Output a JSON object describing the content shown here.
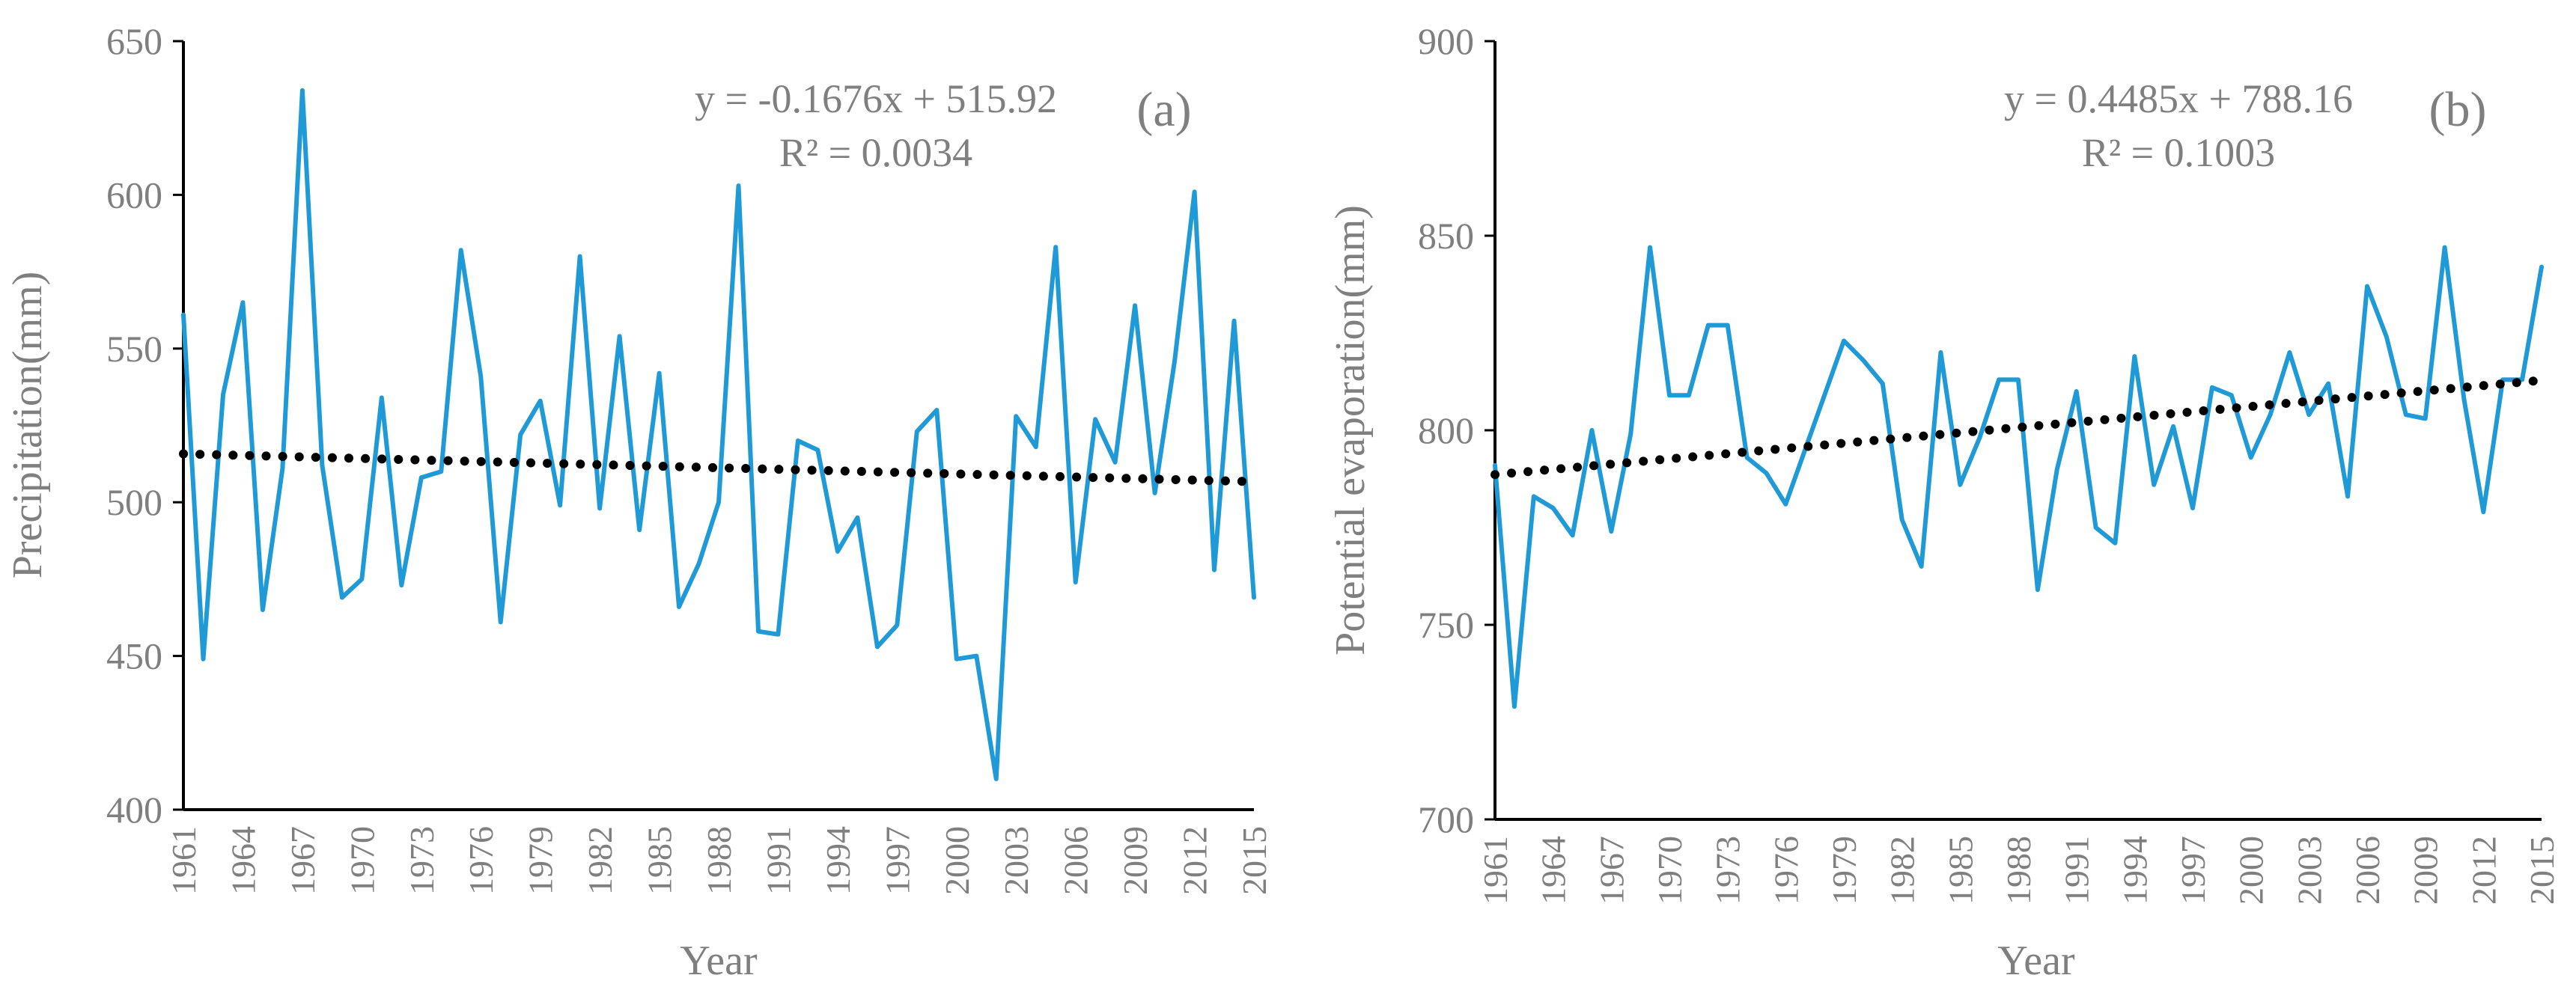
{
  "chart_data": [
    {
      "type": "line",
      "panel_label": "(a)",
      "title": "",
      "xlabel": "Year",
      "ylabel": "Precipitation(mm)",
      "ylim": [
        400,
        650
      ],
      "yticks": [
        "400",
        "450",
        "500",
        "550",
        "600",
        "650"
      ],
      "xlim": [
        1961,
        2015
      ],
      "xticks": [
        "1961",
        "1964",
        "1967",
        "1970",
        "1973",
        "1976",
        "1979",
        "1982",
        "1985",
        "1988",
        "1991",
        "1994",
        "1997",
        "2000",
        "2003",
        "2006",
        "2009",
        "2012",
        "2015"
      ],
      "grid": false,
      "equation": "y = -0.1676x + 515.92",
      "r_squared": "R² = 0.0034",
      "trendline": {
        "slope": -0.1676,
        "intercept": 515.92,
        "style": "dotted"
      },
      "series": [
        {
          "name": "Precipitation",
          "color": "#1f9ad6",
          "x": [
            1961,
            1962,
            1963,
            1964,
            1965,
            1966,
            1967,
            1968,
            1969,
            1970,
            1971,
            1972,
            1973,
            1974,
            1975,
            1976,
            1977,
            1978,
            1979,
            1980,
            1981,
            1982,
            1983,
            1984,
            1985,
            1986,
            1987,
            1988,
            1989,
            1990,
            1991,
            1992,
            1993,
            1994,
            1995,
            1996,
            1997,
            1998,
            1999,
            2000,
            2001,
            2002,
            2003,
            2004,
            2005,
            2006,
            2007,
            2008,
            2009,
            2010,
            2011,
            2012,
            2013,
            2014,
            2015
          ],
          "values": [
            561,
            449,
            535,
            565,
            465,
            511,
            634,
            512,
            469,
            475,
            534,
            473,
            508,
            510,
            582,
            541,
            461,
            522,
            533,
            499,
            580,
            498,
            554,
            491,
            542,
            466,
            480,
            500,
            603,
            458,
            457,
            520,
            517,
            484,
            495,
            453,
            460,
            523,
            530,
            449,
            450,
            410,
            528,
            518,
            583,
            474,
            527,
            513,
            564,
            503,
            546,
            601,
            478,
            559,
            469
          ]
        }
      ]
    },
    {
      "type": "line",
      "panel_label": "(b)",
      "title": "",
      "xlabel": "Year",
      "ylabel": "Potential evaporation(mm)",
      "ylim": [
        700,
        900
      ],
      "yticks": [
        "700",
        "750",
        "800",
        "850",
        "900"
      ],
      "xlim": [
        1961,
        2015
      ],
      "xticks": [
        "1961",
        "1964",
        "1967",
        "1970",
        "1973",
        "1976",
        "1979",
        "1982",
        "1985",
        "1988",
        "1991",
        "1994",
        "1997",
        "2000",
        "2003",
        "2006",
        "2009",
        "2012",
        "2015"
      ],
      "grid": false,
      "equation": "y = 0.4485x + 788.16",
      "r_squared": "R² = 0.1003",
      "trendline": {
        "slope": 0.4485,
        "intercept": 788.16,
        "style": "dotted"
      },
      "series": [
        {
          "name": "Potential evaporation",
          "color": "#1f9ad6",
          "x": [
            1961,
            1962,
            1963,
            1964,
            1965,
            1966,
            1967,
            1968,
            1969,
            1970,
            1971,
            1972,
            1973,
            1974,
            1975,
            1976,
            1977,
            1978,
            1979,
            1980,
            1981,
            1982,
            1983,
            1984,
            1985,
            1986,
            1987,
            1988,
            1989,
            1990,
            1991,
            1992,
            1993,
            1994,
            1995,
            1996,
            1997,
            1998,
            1999,
            2000,
            2001,
            2002,
            2003,
            2004,
            2005,
            2006,
            2007,
            2008,
            2009,
            2010,
            2011,
            2012,
            2013,
            2014,
            2015
          ],
          "values": [
            791,
            729,
            783,
            780,
            773,
            800,
            774,
            799,
            847,
            809,
            809,
            827,
            827,
            793,
            789,
            781,
            795,
            809,
            823,
            818,
            812,
            777,
            765,
            820,
            786,
            798,
            813,
            813,
            759,
            790,
            810,
            775,
            771,
            819,
            786,
            801,
            780,
            811,
            809,
            793,
            804,
            820,
            804,
            812,
            783,
            837,
            824,
            804,
            803,
            847,
            808,
            779,
            813,
            813,
            842
          ]
        }
      ]
    }
  ]
}
